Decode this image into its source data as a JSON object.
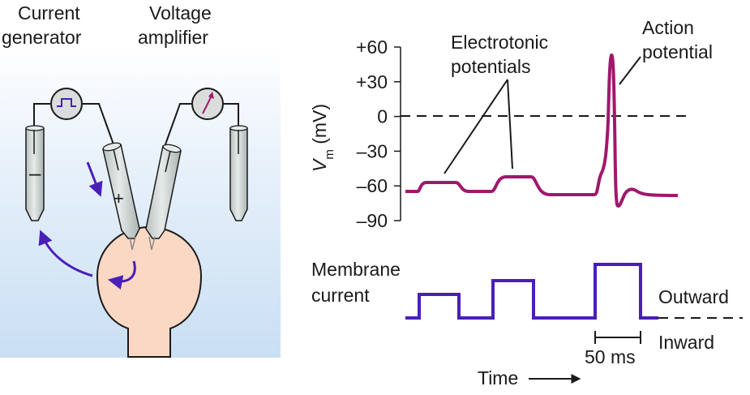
{
  "apparatus": {
    "current_generator_label": [
      "Current",
      "generator"
    ],
    "voltage_amplifier_label": [
      "Voltage",
      "amplifier"
    ],
    "minus_sign": "–",
    "plus_sign": "+"
  },
  "voltage_trace": {
    "ylabel_main": "V",
    "ylabel_sub": "m",
    "ylabel_unit": " (mV)",
    "ticks": [
      "+60",
      "+30",
      "0",
      "–30",
      "–60",
      "–90"
    ],
    "annotation_electrotonic": [
      "Electrotonic",
      "potentials"
    ],
    "annotation_action": [
      "Action",
      "potential"
    ]
  },
  "current_trace": {
    "label": [
      "Membrane",
      "current"
    ],
    "outward_label": "Outward",
    "inward_label": "Inward",
    "scale_bar_label": "50 ms",
    "time_label": "Time"
  },
  "colors": {
    "panel_bg_top": "#ffffff",
    "panel_bg_bottom": "#c9dff3",
    "voltage_trace": "#a0186c",
    "current_trace": "#4a1fb8",
    "arrow": "#4a1fb8",
    "cell": "#fbd8c4",
    "electrode": "#d3dad8"
  }
}
